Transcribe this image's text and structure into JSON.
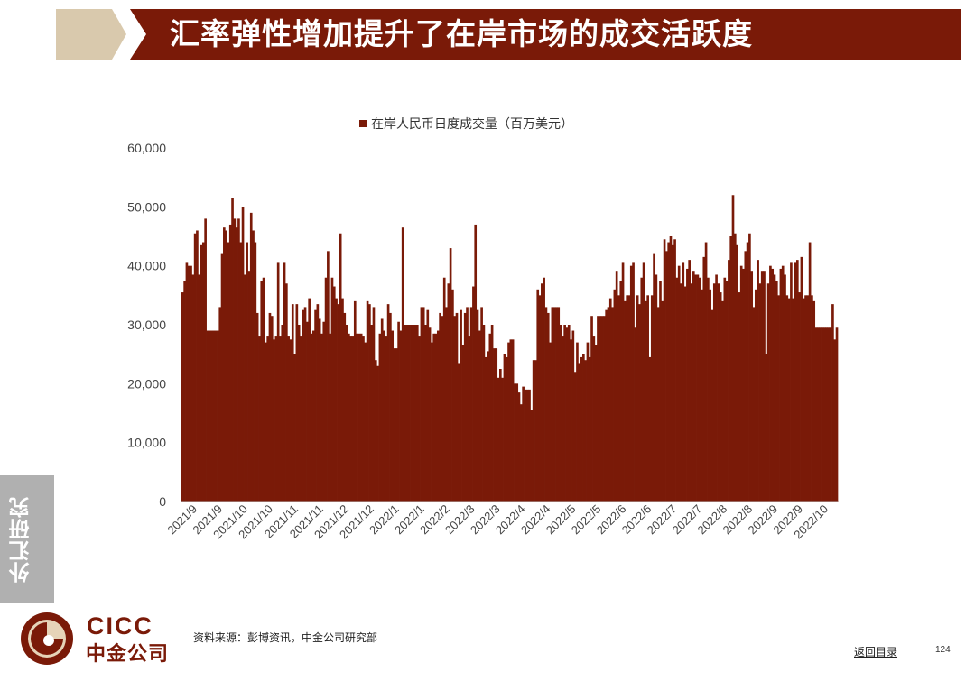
{
  "header": {
    "title": "汇率弹性增加提升了在岸市场的成交活跃度"
  },
  "side_tab": {
    "label": "外汇研究"
  },
  "logo": {
    "en": "CICC",
    "cn": "中金公司"
  },
  "footer": {
    "source": "资料来源：彭博资讯，中金公司研究部",
    "back_link": "返回目录",
    "page_number": "124"
  },
  "colors": {
    "bar": "#7a1a08",
    "title_bg": "#7a1a08",
    "chevron": "#d9c9ad",
    "side_tab": "#b0b0b0"
  },
  "chart_data": {
    "type": "bar",
    "legend": [
      "在岸人民币日度成交量（百万美元）"
    ],
    "legend_position": "top",
    "grid": false,
    "ylim": [
      0,
      60000
    ],
    "yticks": [
      "0",
      "10,000",
      "20,000",
      "30,000",
      "40,000",
      "50,000",
      "60,000"
    ],
    "ytick_values": [
      0,
      10000,
      20000,
      30000,
      40000,
      50000,
      60000
    ],
    "xticks": [
      "2021/9",
      "2021/9",
      "2021/10",
      "2021/10",
      "2021/11",
      "2021/11",
      "2021/12",
      "2021/12",
      "2022/1",
      "2022/1",
      "2022/2",
      "2022/3",
      "2022/3",
      "2022/4",
      "2022/4",
      "2022/5",
      "2022/5",
      "2022/6",
      "2022/6",
      "2022/7",
      "2022/7",
      "2022/8",
      "2022/8",
      "2022/9",
      "2022/9",
      "2022/10"
    ],
    "series": [
      {
        "name": "在岸人民币日度成交量（百万美元）",
        "values": [
          35500,
          37500,
          40500,
          40000,
          40000,
          38500,
          45500,
          46000,
          38500,
          43500,
          44000,
          48000,
          29000,
          29000,
          29000,
          29000,
          29000,
          29000,
          33000,
          42000,
          46500,
          46000,
          44000,
          47000,
          51500,
          48000,
          46500,
          48000,
          44000,
          50000,
          38500,
          44000,
          39000,
          49000,
          46000,
          44000,
          32000,
          28000,
          37500,
          38000,
          27000,
          28000,
          32000,
          31500,
          27500,
          28000,
          40500,
          28000,
          30000,
          40500,
          37000,
          28000,
          27500,
          33500,
          25000,
          33500,
          30000,
          28000,
          32500,
          33000,
          30500,
          34500,
          28500,
          29000,
          32500,
          33500,
          31000,
          28500,
          30500,
          38000,
          42500,
          28500,
          38000,
          36500,
          34500,
          33500,
          45500,
          34500,
          32000,
          30000,
          28500,
          28000,
          28000,
          34000,
          28500,
          28500,
          28500,
          28000,
          27000,
          34000,
          33500,
          30000,
          33000,
          24000,
          23000,
          28500,
          31000,
          29000,
          28000,
          33500,
          32000,
          29000,
          26000,
          26000,
          30500,
          29000,
          46500,
          30000,
          30000,
          30000,
          30000,
          30000,
          30000,
          30000,
          28000,
          33000,
          33000,
          30000,
          32500,
          29500,
          27000,
          28500,
          28500,
          29000,
          32000,
          31500,
          38000,
          33000,
          37000,
          43000,
          36000,
          31500,
          32000,
          23500,
          32500,
          26500,
          32000,
          33000,
          28000,
          33000,
          36500,
          47000,
          32500,
          29000,
          33000,
          30000,
          24500,
          25500,
          28500,
          30000,
          26000,
          26000,
          21000,
          22500,
          21000,
          25000,
          24500,
          27000,
          27500,
          27500,
          20000,
          20000,
          18500,
          16500,
          19500,
          19000,
          19000,
          19000,
          15500,
          24000,
          24000,
          36000,
          35000,
          37000,
          38000,
          33000,
          32000,
          27000,
          33000,
          33000,
          33000,
          33000,
          30000,
          28000,
          30000,
          29500,
          30000,
          27500,
          29000,
          22000,
          27000,
          23500,
          24500,
          25000,
          24000,
          27000,
          24500,
          31500,
          28000,
          26500,
          31500,
          31500,
          31500,
          31500,
          32500,
          33000,
          34500,
          33000,
          36000,
          39000,
          35000,
          37500,
          40500,
          34000,
          35000,
          35000,
          40000,
          40500,
          29500,
          35000,
          33500,
          38000,
          40500,
          34000,
          35000,
          24500,
          35000,
          42000,
          38500,
          33000,
          37500,
          34000,
          44500,
          42500,
          44000,
          45000,
          43500,
          44500,
          38000,
          40000,
          37000,
          40500,
          36500,
          39500,
          41000,
          37000,
          39000,
          38500,
          38500,
          38000,
          36000,
          41500,
          44000,
          38000,
          36000,
          32500,
          37000,
          38500,
          37000,
          35500,
          34000,
          38000,
          37500,
          41000,
          45000,
          52000,
          45500,
          43500,
          35500,
          40000,
          39500,
          42500,
          44000,
          45500,
          39000,
          33000,
          36000,
          41000,
          37000,
          39000,
          39000,
          25000,
          37000,
          40000,
          39500,
          38500,
          37500,
          35000,
          39500,
          40000,
          38500,
          35000,
          34500,
          40500,
          34500,
          40500,
          41000,
          35500,
          41500,
          34500,
          35000,
          35000,
          44000,
          35000,
          34000,
          29500,
          29500,
          29500,
          29500,
          29500,
          29500,
          29500,
          29500,
          33500,
          27500,
          29500
        ]
      }
    ]
  }
}
